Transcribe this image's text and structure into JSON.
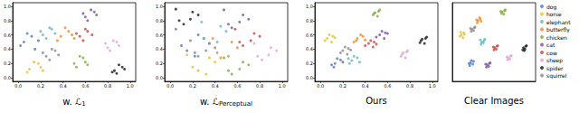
{
  "chart_data": [
    {
      "type": "scatter",
      "title": "w. ℒ",
      "title_subscript": "1",
      "xlim": [
        -0.05,
        1.05
      ],
      "ylim": [
        -0.05,
        1.05
      ],
      "xticks": [
        {
          "value": 0,
          "label": "0.0"
        },
        {
          "value": 0.2,
          "label": "0.2"
        },
        {
          "value": 0.4,
          "label": "0.4"
        },
        {
          "value": 0.6,
          "label": "0.6"
        },
        {
          "value": 0.8,
          "label": "0.8"
        },
        {
          "value": 1,
          "label": "1.0"
        }
      ],
      "yticks": [
        {
          "value": 0,
          "label": "0.0"
        },
        {
          "value": 0.2,
          "label": "0.2"
        },
        {
          "value": 0.4,
          "label": "0.4"
        },
        {
          "value": 0.6,
          "label": "0.6"
        },
        {
          "value": 0.8,
          "label": "0.8"
        },
        {
          "value": 1,
          "label": "1.0"
        }
      ],
      "series": [
        {
          "name": "dog",
          "color": "#4e79c4",
          "x": [
            0.05,
            0.12,
            0.02,
            0.15,
            0.08,
            0.18
          ],
          "y": [
            0.5,
            0.58,
            0.45,
            0.4,
            0.62,
            0.52
          ]
        },
        {
          "name": "horse",
          "color": "#e8c12a",
          "x": [
            0.1,
            0.18,
            0.08,
            0.2,
            0.14,
            0.22
          ],
          "y": [
            0.12,
            0.2,
            0.08,
            0.15,
            0.22,
            0.1
          ]
        },
        {
          "name": "elephant",
          "color": "#5fb8c8",
          "x": [
            0.22,
            0.3,
            0.25,
            0.33,
            0.28,
            0.2
          ],
          "y": [
            0.6,
            0.68,
            0.55,
            0.62,
            0.7,
            0.65
          ]
        },
        {
          "name": "butterfly",
          "color": "#f08a24",
          "x": [
            0.38,
            0.45,
            0.35,
            0.48,
            0.42,
            0.5
          ],
          "y": [
            0.58,
            0.65,
            0.52,
            0.6,
            0.7,
            0.55
          ]
        },
        {
          "name": "chicken",
          "color": "#7fae3c",
          "x": [
            0.5,
            0.58,
            0.52,
            0.6,
            0.55,
            0.62
          ],
          "y": [
            0.2,
            0.28,
            0.15,
            0.22,
            0.3,
            0.18
          ]
        },
        {
          "name": "cat",
          "color": "#7b4fa8",
          "x": [
            0.6,
            0.68,
            0.62,
            0.7,
            0.65,
            0.58
          ],
          "y": [
            0.85,
            0.92,
            0.8,
            0.88,
            0.95,
            0.9
          ]
        },
        {
          "name": "cow",
          "color": "#c8473d",
          "x": [
            0.55,
            0.62,
            0.58,
            0.66,
            0.6,
            0.52
          ],
          "y": [
            0.58,
            0.65,
            0.52,
            0.6,
            0.68,
            0.62
          ]
        },
        {
          "name": "sheep",
          "color": "#e6a2d4",
          "x": [
            0.8,
            0.88,
            0.82,
            0.9,
            0.85,
            0.78
          ],
          "y": [
            0.42,
            0.5,
            0.38,
            0.45,
            0.52,
            0.48
          ]
        },
        {
          "name": "spider",
          "color": "#1a1a1a",
          "x": [
            0.86,
            0.93,
            0.88,
            0.95,
            0.9,
            0.84
          ],
          "y": [
            0.1,
            0.15,
            0.06,
            0.12,
            0.18,
            0.08
          ]
        },
        {
          "name": "squirrel",
          "color": "#8a8a8a",
          "x": [
            0.25,
            0.33,
            0.28,
            0.36,
            0.3,
            0.22
          ],
          "y": [
            0.3,
            0.38,
            0.25,
            0.32,
            0.4,
            0.35
          ]
        }
      ]
    },
    {
      "type": "scatter",
      "title": "w. ℒ",
      "title_subscript": "Perceptual",
      "xlim": [
        -0.05,
        1.05
      ],
      "ylim": [
        -0.05,
        1.05
      ],
      "xticks": [
        {
          "value": 0,
          "label": "0.0"
        },
        {
          "value": 0.2,
          "label": "0.2"
        },
        {
          "value": 0.4,
          "label": "0.4"
        },
        {
          "value": 0.6,
          "label": "0.6"
        },
        {
          "value": 0.8,
          "label": "0.8"
        },
        {
          "value": 1,
          "label": "1.0"
        }
      ],
      "yticks": [
        {
          "value": 0,
          "label": "0.0"
        },
        {
          "value": 0.2,
          "label": "0.2"
        },
        {
          "value": 0.4,
          "label": "0.4"
        },
        {
          "value": 0.6,
          "label": "0.6"
        },
        {
          "value": 0.8,
          "label": "0.8"
        },
        {
          "value": 1,
          "label": "1.0"
        }
      ],
      "series": [
        {
          "name": "dog",
          "color": "#4e79c4",
          "x": [
            0.1,
            0.25,
            0.15,
            0.3,
            0.05,
            0.22
          ],
          "y": [
            0.45,
            0.6,
            0.38,
            0.55,
            0.68,
            0.3
          ]
        },
        {
          "name": "horse",
          "color": "#e8c12a",
          "x": [
            0.2,
            0.35,
            0.25,
            0.4,
            0.15,
            0.32
          ],
          "y": [
            0.15,
            0.28,
            0.1,
            0.22,
            0.32,
            0.05
          ]
        },
        {
          "name": "elephant",
          "color": "#5fb8c8",
          "x": [
            0.3,
            0.45,
            0.35,
            0.5,
            0.28,
            0.42
          ],
          "y": [
            0.55,
            0.72,
            0.48,
            0.65,
            0.78,
            0.5
          ]
        },
        {
          "name": "butterfly",
          "color": "#f08a24",
          "x": [
            0.42,
            0.55,
            0.45,
            0.6,
            0.38,
            0.52
          ],
          "y": [
            0.35,
            0.5,
            0.28,
            0.42,
            0.55,
            0.3
          ]
        },
        {
          "name": "chicken",
          "color": "#7fae3c",
          "x": [
            0.52,
            0.65,
            0.55,
            0.7,
            0.48,
            0.62
          ],
          "y": [
            0.1,
            0.22,
            0.05,
            0.18,
            0.28,
            0.12
          ]
        },
        {
          "name": "cat",
          "color": "#7b4fa8",
          "x": [
            0.52,
            0.65,
            0.55,
            0.7,
            0.48,
            0.62
          ],
          "y": [
            0.75,
            0.88,
            0.7,
            0.82,
            0.95,
            0.78
          ]
        },
        {
          "name": "cow",
          "color": "#c8473d",
          "x": [
            0.62,
            0.75,
            0.65,
            0.8,
            0.58,
            0.72
          ],
          "y": [
            0.5,
            0.62,
            0.45,
            0.58,
            0.68,
            0.52
          ]
        },
        {
          "name": "sheep",
          "color": "#e6a2d4",
          "x": [
            0.78,
            0.9,
            0.82,
            0.95,
            0.75,
            0.88
          ],
          "y": [
            0.3,
            0.42,
            0.25,
            0.38,
            0.48,
            0.32
          ]
        },
        {
          "name": "spider",
          "color": "#1a1a1a",
          "x": [
            0.08,
            0.2,
            0.12,
            0.25,
            0.05,
            0.18
          ],
          "y": [
            0.8,
            0.92,
            0.75,
            0.88,
            0.96,
            0.82
          ]
        },
        {
          "name": "squirrel",
          "color": "#8a8a8a",
          "x": [
            0.22,
            0.35,
            0.25,
            0.4,
            0.18,
            0.32
          ],
          "y": [
            0.35,
            0.48,
            0.3,
            0.42,
            0.52,
            0.38
          ]
        }
      ]
    },
    {
      "type": "scatter",
      "title": "Ours",
      "xlim": [
        -0.05,
        1.05
      ],
      "ylim": [
        -0.05,
        1.05
      ],
      "xticks": [
        {
          "value": 0,
          "label": "0.0"
        },
        {
          "value": 0.2,
          "label": "0.2"
        },
        {
          "value": 0.4,
          "label": "0.4"
        },
        {
          "value": 0.6,
          "label": "0.6"
        },
        {
          "value": 0.8,
          "label": "0.8"
        },
        {
          "value": 1,
          "label": "1.0"
        }
      ],
      "yticks": [
        {
          "value": 0,
          "label": "0.0"
        },
        {
          "value": 0.2,
          "label": "0.2"
        },
        {
          "value": 0.4,
          "label": "0.4"
        },
        {
          "value": 0.6,
          "label": "0.6"
        },
        {
          "value": 0.8,
          "label": "0.8"
        },
        {
          "value": 1,
          "label": "1.0"
        }
      ],
      "series": [
        {
          "name": "dog",
          "color": "#4e79c4",
          "x": [
            0.13,
            0.18,
            0.1,
            0.2,
            0.15,
            0.12
          ],
          "y": [
            0.2,
            0.25,
            0.18,
            0.22,
            0.27,
            0.15
          ]
        },
        {
          "name": "horse",
          "color": "#e8c12a",
          "x": [
            0.06,
            0.11,
            0.04,
            0.1,
            0.08,
            0.13
          ],
          "y": [
            0.55,
            0.58,
            0.52,
            0.5,
            0.6,
            0.56
          ]
        },
        {
          "name": "elephant",
          "color": "#5fb8c8",
          "x": [
            0.28,
            0.33,
            0.26,
            0.35,
            0.3,
            0.25
          ],
          "y": [
            0.24,
            0.28,
            0.2,
            0.22,
            0.3,
            0.27
          ]
        },
        {
          "name": "butterfly",
          "color": "#f08a24",
          "x": [
            0.33,
            0.38,
            0.3,
            0.4,
            0.36,
            0.32
          ],
          "y": [
            0.55,
            0.58,
            0.5,
            0.53,
            0.6,
            0.52
          ]
        },
        {
          "name": "chicken",
          "color": "#7fae3c",
          "x": [
            0.48,
            0.52,
            0.47,
            0.51,
            0.53,
            0.49
          ],
          "y": [
            0.9,
            0.93,
            0.88,
            0.86,
            0.95,
            0.91
          ]
        },
        {
          "name": "cat",
          "color": "#7b4fa8",
          "x": [
            0.53,
            0.58,
            0.5,
            0.57,
            0.55,
            0.6
          ],
          "y": [
            0.6,
            0.63,
            0.57,
            0.55,
            0.65,
            0.62
          ]
        },
        {
          "name": "cow",
          "color": "#c8473d",
          "x": [
            0.43,
            0.48,
            0.4,
            0.47,
            0.45,
            0.5
          ],
          "y": [
            0.48,
            0.5,
            0.45,
            0.43,
            0.52,
            0.47
          ]
        },
        {
          "name": "sheep",
          "color": "#e6a2d4",
          "x": [
            0.73,
            0.77,
            0.72,
            0.76,
            0.78,
            0.74
          ],
          "y": [
            0.33,
            0.36,
            0.3,
            0.28,
            0.38,
            0.35
          ]
        },
        {
          "name": "spider",
          "color": "#1a1a1a",
          "x": [
            0.9,
            0.94,
            0.89,
            0.93,
            0.95,
            0.91
          ],
          "y": [
            0.52,
            0.55,
            0.49,
            0.48,
            0.57,
            0.54
          ]
        },
        {
          "name": "squirrel",
          "color": "#8a8a8a",
          "x": [
            0.2,
            0.25,
            0.18,
            0.24,
            0.22,
            0.27
          ],
          "y": [
            0.38,
            0.41,
            0.35,
            0.33,
            0.43,
            0.39
          ]
        }
      ]
    },
    {
      "type": "scatter",
      "title": "Clear Images",
      "tick_labels": false,
      "legend": "right",
      "xlim": [
        -0.05,
        1.05
      ],
      "ylim": [
        -0.05,
        1.05
      ],
      "series": [
        {
          "name": "dog",
          "color": "#4e79c4",
          "x": [
            0.19,
            0.22,
            0.18,
            0.23,
            0.2,
            0.17
          ],
          "y": [
            0.21,
            0.19,
            0.17,
            0.23,
            0.24,
            0.2
          ]
        },
        {
          "name": "horse",
          "color": "#e8c12a",
          "x": [
            0.07,
            0.1,
            0.05,
            0.09,
            0.11,
            0.06
          ],
          "y": [
            0.6,
            0.63,
            0.58,
            0.56,
            0.61,
            0.64
          ]
        },
        {
          "name": "elephant",
          "color": "#5fb8c8",
          "x": [
            0.34,
            0.37,
            0.33,
            0.36,
            0.38,
            0.32
          ],
          "y": [
            0.5,
            0.52,
            0.47,
            0.49,
            0.54,
            0.53
          ]
        },
        {
          "name": "butterfly",
          "color": "#f08a24",
          "x": [
            0.29,
            0.32,
            0.28,
            0.31,
            0.33,
            0.27
          ],
          "y": [
            0.8,
            0.82,
            0.77,
            0.84,
            0.79,
            0.81
          ]
        },
        {
          "name": "chicken",
          "color": "#7fae3c",
          "x": [
            0.61,
            0.64,
            0.6,
            0.63,
            0.65,
            0.59
          ],
          "y": [
            0.92,
            0.94,
            0.9,
            0.89,
            0.95,
            0.93
          ]
        },
        {
          "name": "cat",
          "color": "#7b4fa8",
          "x": [
            0.41,
            0.44,
            0.4,
            0.43,
            0.45,
            0.39
          ],
          "y": [
            0.18,
            0.2,
            0.15,
            0.16,
            0.21,
            0.19
          ]
        },
        {
          "name": "cow",
          "color": "#c8473d",
          "x": [
            0.51,
            0.54,
            0.5,
            0.53,
            0.55,
            0.49
          ],
          "y": [
            0.42,
            0.44,
            0.39,
            0.4,
            0.45,
            0.43
          ]
        },
        {
          "name": "sheep",
          "color": "#e6a2d4",
          "x": [
            0.69,
            0.72,
            0.68,
            0.71,
            0.73,
            0.67
          ],
          "y": [
            0.28,
            0.3,
            0.25,
            0.26,
            0.31,
            0.29
          ]
        },
        {
          "name": "spider",
          "color": "#1a1a1a",
          "x": [
            0.89,
            0.92,
            0.88,
            0.91,
            0.93,
            0.9
          ],
          "y": [
            0.42,
            0.44,
            0.39,
            0.4,
            0.45,
            0.38
          ]
        },
        {
          "name": "squirrel",
          "color": "#8a8a8a",
          "x": [
            0.21,
            0.24,
            0.2,
            0.23,
            0.25,
            0.19
          ],
          "y": [
            0.68,
            0.7,
            0.65,
            0.66,
            0.71,
            0.69
          ]
        }
      ]
    }
  ]
}
